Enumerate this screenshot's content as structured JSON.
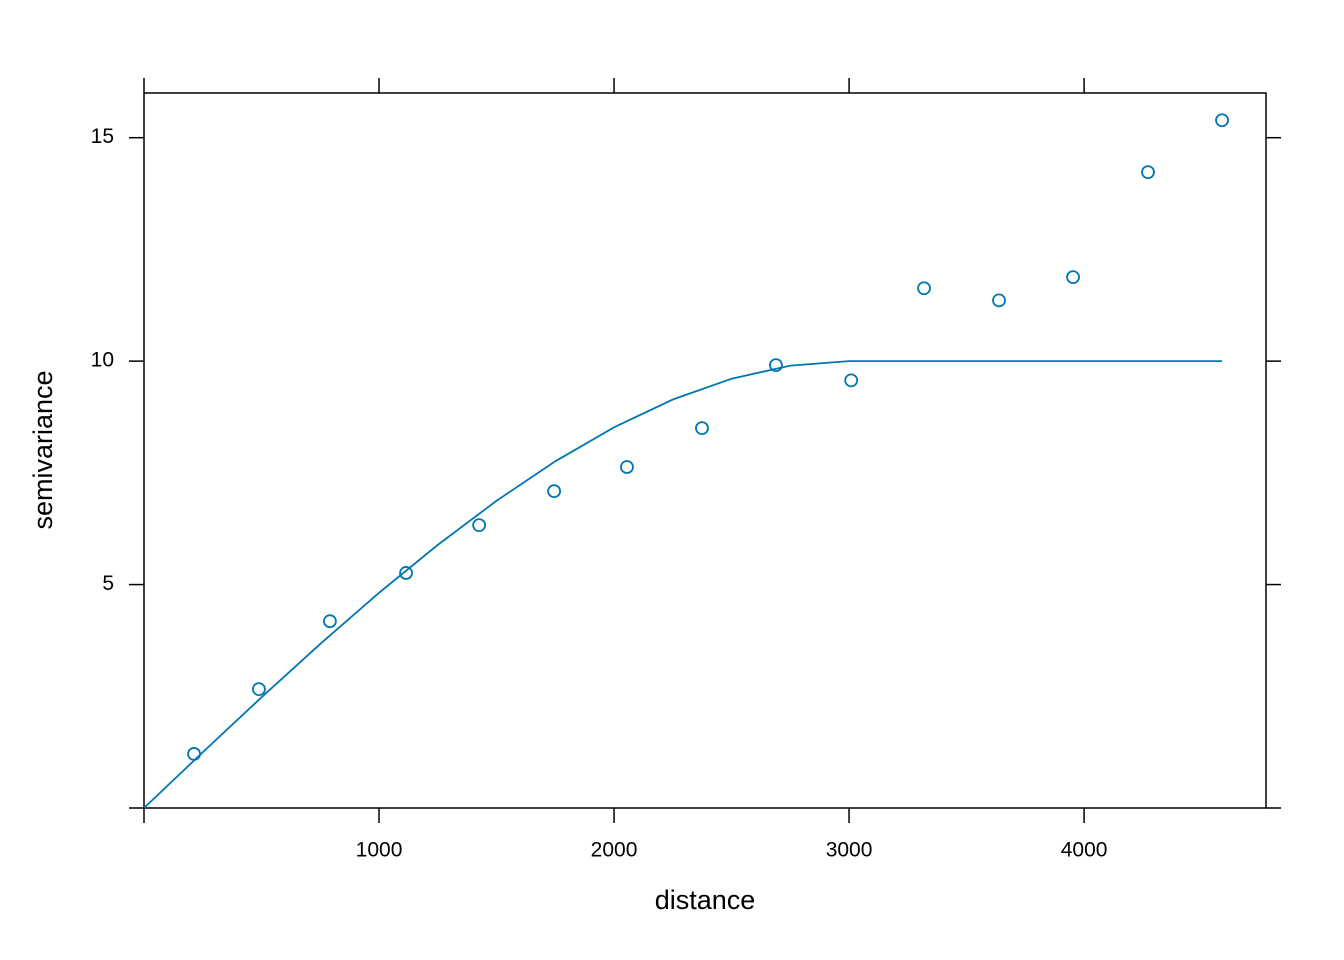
{
  "chart_data": {
    "type": "scatter",
    "xlabel": "distance",
    "ylabel": "semivariance",
    "color": "#0077b3",
    "xlim": [
      0,
      4774
    ],
    "ylim": [
      0,
      16
    ],
    "xticks": [
      {
        "value": 0,
        "label": null
      },
      1000,
      2000,
      3000,
      4000
    ],
    "yticks": [
      {
        "value": 0,
        "label": null
      },
      5,
      10,
      15
    ],
    "points": {
      "x": [
        213,
        489,
        791,
        1115,
        1426,
        1745,
        2055,
        2374,
        2689,
        3009,
        3319,
        3638,
        3953,
        4272,
        4587
      ],
      "y": [
        1.21,
        2.66,
        4.18,
        5.26,
        6.33,
        7.09,
        7.63,
        8.5,
        9.91,
        9.57,
        11.63,
        11.36,
        11.88,
        14.23,
        15.39
      ]
    },
    "model": {
      "x": [
        0,
        250,
        500,
        750,
        1000,
        1250,
        1500,
        1750,
        2000,
        2250,
        2500,
        2750,
        3000,
        4587
      ],
      "y": [
        0,
        1.247,
        2.477,
        3.672,
        4.815,
        5.888,
        6.875,
        7.758,
        8.519,
        9.141,
        9.606,
        9.899,
        10,
        10
      ]
    }
  }
}
